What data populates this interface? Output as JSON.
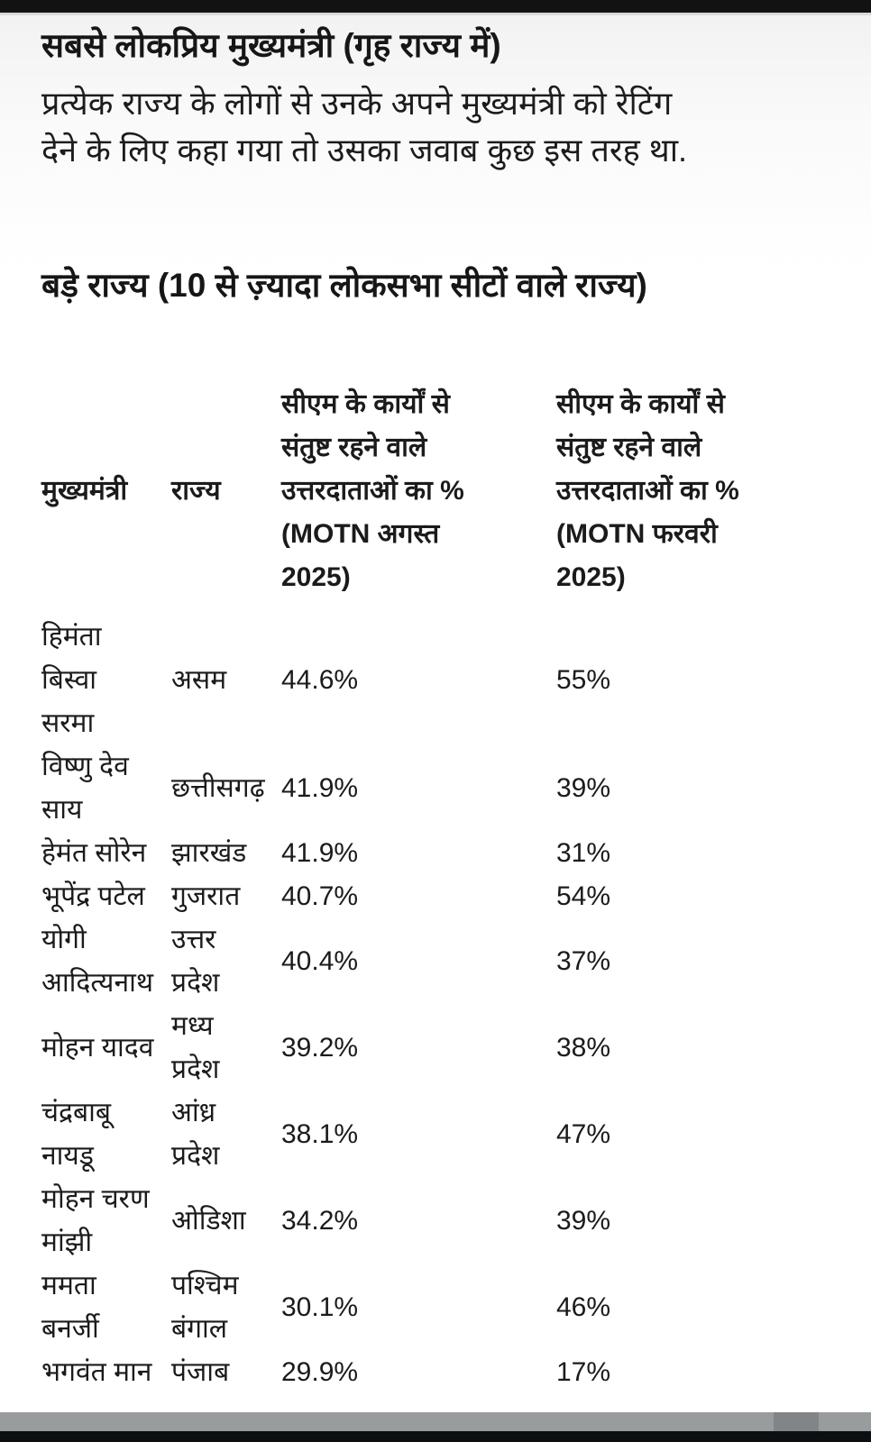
{
  "article": {
    "title": "सबसे लोकप्रिय मुख्यमंत्री (गृह राज्य में)",
    "intro": "प्रत्येक राज्य के लोगों से उनके अपने मुख्यमंत्री को रेटिंग\nदेने के लिए कहा गया तो उसका जवाब कुछ इस तरह था.",
    "section_heading": "बड़े राज्य (10 से ज़्यादा लोकसभा सीटों वाले राज्य)"
  },
  "table": {
    "headers": {
      "cm": "मुख्यमंत्री",
      "state": "राज्य",
      "aug": "सीएम के कार्यों से\nसंतुष्ट रहने वाले\nउत्तरदाताओं का %\n(MOTN अगस्त\n2025)",
      "feb": "सीएम के कार्यों से\nसंतुष्ट रहने वाले\nउत्तरदाताओं का %\n(MOTN फरवरी\n2025)"
    },
    "rows": [
      {
        "cm": "हिमंता\nबिस्वा\nसरमा",
        "state": "असम",
        "aug": "44.6%",
        "feb": "55%"
      },
      {
        "cm": "विष्णु देव\nसाय",
        "state": "छत्तीसगढ़",
        "aug": "41.9%",
        "feb": "39%"
      },
      {
        "cm": "हेमंत सोरेन",
        "state": "झारखंड",
        "aug": "41.9%",
        "feb": "31%"
      },
      {
        "cm": "भूपेंद्र पटेल",
        "state": "गुजरात",
        "aug": "40.7%",
        "feb": "54%"
      },
      {
        "cm": "योगी\nआदित्यनाथ",
        "state": "उत्तर\nप्रदेश",
        "aug": "40.4%",
        "feb": "37%"
      },
      {
        "cm": "मोहन यादव",
        "state": "मध्य\nप्रदेश",
        "aug": "39.2%",
        "feb": "38%"
      },
      {
        "cm": "चंद्रबाबू\nनायडू",
        "state": "आंध्र\nप्रदेश",
        "aug": "38.1%",
        "feb": "47%"
      },
      {
        "cm": "मोहन चरण\nमांझी",
        "state": "ओडिशा",
        "aug": "34.2%",
        "feb": "39%"
      },
      {
        "cm": "ममता\nबनर्जी",
        "state": "पश्चिम\nबंगाल",
        "aug": "30.1%",
        "feb": "46%"
      },
      {
        "cm": "भगवंत मान",
        "state": "पंजाब",
        "aug": "29.9%",
        "feb": "17%"
      }
    ]
  },
  "chart_data": {
    "type": "table",
    "title": "बड़े राज्य (10 से ज़्यादा लोकसभा सीटों वाले राज्य)",
    "columns": [
      "मुख्यमंत्री",
      "राज्य",
      "सीएम के कार्यों से संतुष्ट रहने वाले उत्तरदाताओं का % (MOTN अगस्त 2025)",
      "सीएम के कार्यों से संतुष्ट रहने वाले उत्तरदाताओं का % (MOTN फरवरी 2025)"
    ],
    "categories": [
      "असम",
      "छत्तीसगढ़",
      "झारखंड",
      "गुजरात",
      "उत्तर प्रदेश",
      "मध्य प्रदेश",
      "आंध्र प्रदेश",
      "ओडिशा",
      "पश्चिम बंगाल",
      "पंजाब"
    ],
    "series": [
      {
        "name": "MOTN अगस्त 2025",
        "values": [
          44.6,
          41.9,
          41.9,
          40.7,
          40.4,
          39.2,
          38.1,
          34.2,
          30.1,
          29.9
        ]
      },
      {
        "name": "MOTN फरवरी 2025",
        "values": [
          55,
          39,
          31,
          54,
          37,
          38,
          47,
          39,
          46,
          17
        ]
      }
    ]
  },
  "colors": {
    "top_bar": "#121212",
    "separator_line": "#d9d9d9",
    "background_top": "#f1f1f1",
    "background": "#ffffff",
    "text": "#191919",
    "overlay_band": "#86898b",
    "bottom_bar": "#0c0f11"
  }
}
